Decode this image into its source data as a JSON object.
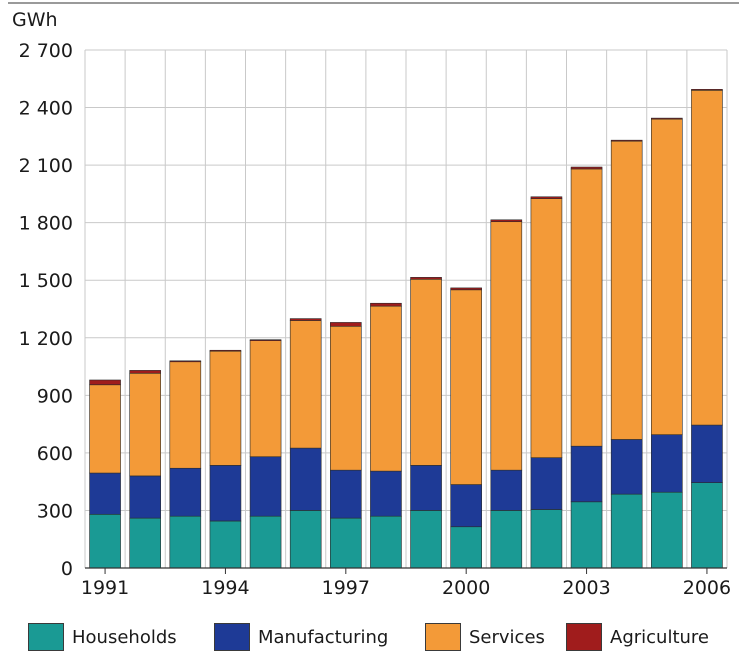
{
  "chart_data": {
    "type": "bar",
    "stacked": true,
    "unit_label": "GWh",
    "categories": [
      "1991",
      "1992",
      "1993",
      "1994",
      "1995",
      "1996",
      "1997",
      "1998",
      "1999",
      "2000",
      "2001",
      "2002",
      "2003",
      "2004",
      "2005",
      "2006"
    ],
    "x_tick_labels": [
      "1991",
      "1994",
      "1997",
      "2000",
      "2003",
      "2006"
    ],
    "y_ticks": [
      "0",
      "300",
      "600",
      "900",
      "1 200",
      "1 500",
      "1 800",
      "2 100",
      "2 400",
      "2 700"
    ],
    "ylim": [
      0,
      2700
    ],
    "grid": true,
    "legend_position": "bottom",
    "series": [
      {
        "name": "Households",
        "color": "#1a9a94",
        "values": [
          280,
          260,
          270,
          245,
          270,
          300,
          260,
          270,
          300,
          215,
          300,
          305,
          345,
          385,
          395,
          445
        ]
      },
      {
        "name": "Manufacturing",
        "color": "#1e3a96",
        "values": [
          215,
          220,
          250,
          290,
          310,
          325,
          250,
          235,
          235,
          220,
          210,
          270,
          290,
          285,
          300,
          300
        ]
      },
      {
        "name": "Services",
        "color": "#f39a38",
        "values": [
          460,
          535,
          555,
          595,
          605,
          665,
          750,
          860,
          970,
          1015,
          1295,
          1350,
          1445,
          1555,
          1645,
          1745
        ]
      },
      {
        "name": "Agriculture",
        "color": "#a01c1c",
        "values": [
          25,
          15,
          5,
          5,
          5,
          10,
          20,
          15,
          10,
          10,
          10,
          10,
          10,
          5,
          5,
          5
        ]
      }
    ]
  }
}
